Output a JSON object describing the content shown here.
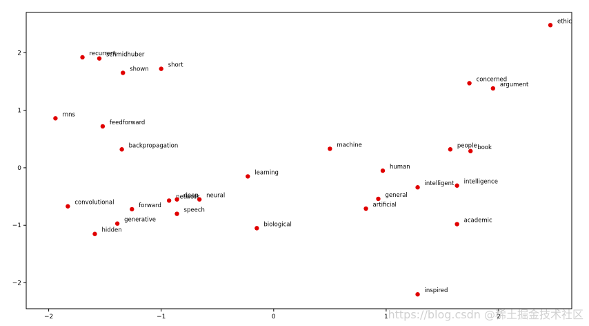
{
  "chart_data": {
    "type": "scatter",
    "title": "",
    "xlabel": "",
    "ylabel": "",
    "xlim": [
      -2.2,
      2.65
    ],
    "ylim": [
      -2.45,
      2.7
    ],
    "x_ticks": [
      -2,
      -1,
      0,
      1,
      2
    ],
    "y_ticks": [
      -2,
      -1,
      0,
      1,
      2
    ],
    "grid": false,
    "marker_color": "#e00000",
    "points": [
      {
        "label": "ethic",
        "x": 2.46,
        "y": 2.48
      },
      {
        "label": "recurrent",
        "x": -1.7,
        "y": 1.92
      },
      {
        "label": "schmidhuber",
        "x": -1.55,
        "y": 1.9
      },
      {
        "label": "shown",
        "x": -1.34,
        "y": 1.65
      },
      {
        "label": "short",
        "x": -1.0,
        "y": 1.72
      },
      {
        "label": "concerned",
        "x": 1.74,
        "y": 1.47
      },
      {
        "label": "argument",
        "x": 1.95,
        "y": 1.38
      },
      {
        "label": "rnns",
        "x": -1.94,
        "y": 0.86
      },
      {
        "label": "feedforward",
        "x": -1.52,
        "y": 0.72
      },
      {
        "label": "backpropagation",
        "x": -1.35,
        "y": 0.32
      },
      {
        "label": "machine",
        "x": 0.5,
        "y": 0.33
      },
      {
        "label": "people",
        "x": 1.57,
        "y": 0.32
      },
      {
        "label": "book",
        "x": 1.75,
        "y": 0.29
      },
      {
        "label": "human",
        "x": 0.97,
        "y": -0.05
      },
      {
        "label": "learning",
        "x": -0.23,
        "y": -0.15
      },
      {
        "label": "intelligent",
        "x": 1.28,
        "y": -0.34
      },
      {
        "label": "intelligence",
        "x": 1.63,
        "y": -0.31
      },
      {
        "label": "network",
        "x": -0.93,
        "y": -0.57
      },
      {
        "label": "deep",
        "x": -0.86,
        "y": -0.55
      },
      {
        "label": "neural",
        "x": -0.66,
        "y": -0.55
      },
      {
        "label": "general",
        "x": 0.93,
        "y": -0.54
      },
      {
        "label": "convolutional",
        "x": -1.83,
        "y": -0.67
      },
      {
        "label": "forward",
        "x": -1.26,
        "y": -0.72
      },
      {
        "label": "artificial",
        "x": 0.82,
        "y": -0.71
      },
      {
        "label": "speech",
        "x": -0.86,
        "y": -0.8
      },
      {
        "label": "generative",
        "x": -1.39,
        "y": -0.97
      },
      {
        "label": "academic",
        "x": 1.63,
        "y": -0.98
      },
      {
        "label": "biological",
        "x": -0.15,
        "y": -1.05
      },
      {
        "label": "hidden",
        "x": -1.59,
        "y": -1.15
      },
      {
        "label": "inspired",
        "x": 1.28,
        "y": -2.2
      }
    ]
  },
  "watermark": "https://blog.csdn @稀土掘金技术社区"
}
